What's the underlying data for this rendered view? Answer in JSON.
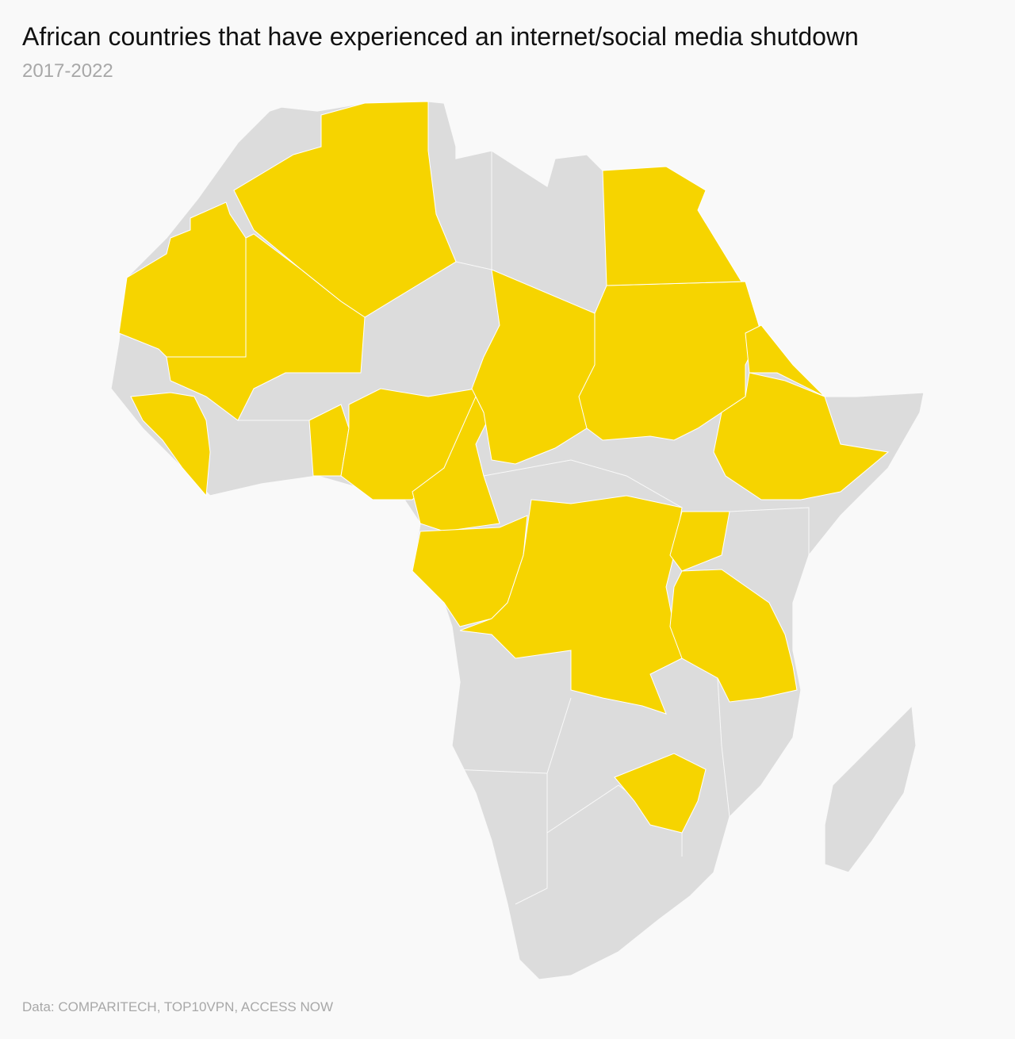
{
  "header": {
    "title": "African countries that have experienced an internet/social media shutdown",
    "subtitle": "2017-2022"
  },
  "footer": {
    "source": "Data: COMPARITECH, TOP10VPN, ACCESS NOW"
  }
}
